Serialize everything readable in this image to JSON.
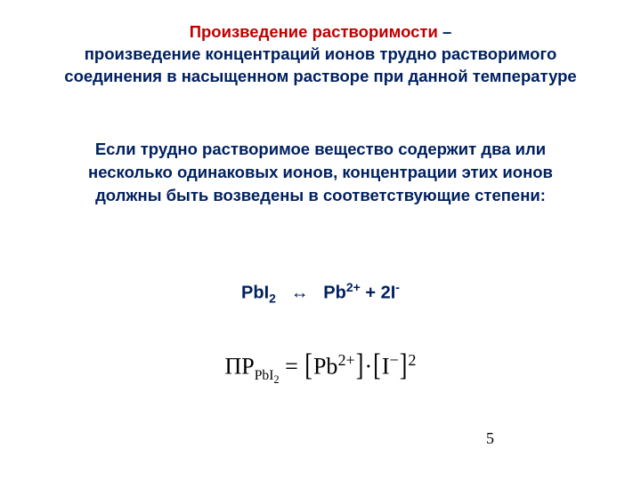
{
  "colors": {
    "background": "#ffffff",
    "title_red": "#c00000",
    "body_blue": "#002060",
    "formula_black": "#000000"
  },
  "title": {
    "highlight": "Произведение растворимости",
    "rest1": " – ",
    "rest2": "произведение концентраций ионов трудно растворимого соединения в насыщенном растворе при данной температуре"
  },
  "paragraph": "Если трудно растворимое вещество  содержит два или несколько одинаковых ионов, концентрации этих ионов должны быть возведены в соответствующие степени:",
  "reaction": {
    "left_base": "PbI",
    "left_sub": "2",
    "arrow": "↔",
    "r1_base": "Pb",
    "r1_sup": "2+",
    "plus": " + ",
    "r2_coeff": "2",
    "r2_base": "I",
    "r2_sup": "-"
  },
  "formula": {
    "lhs_text": "ПР",
    "lhs_sub": "PbI",
    "lhs_sub2": "2",
    "eq": " = ",
    "ion1_base": "Pb",
    "ion1_sup": "2+",
    "dot": "·",
    "ion2_base": "I",
    "ion2_sup": "−",
    "outer_exp": "2"
  },
  "page_number": "5",
  "typography": {
    "body_font": "Arial",
    "body_fontsize_pt": 14,
    "formula_font": "Times New Roman",
    "formula_fontsize_pt": 20
  }
}
